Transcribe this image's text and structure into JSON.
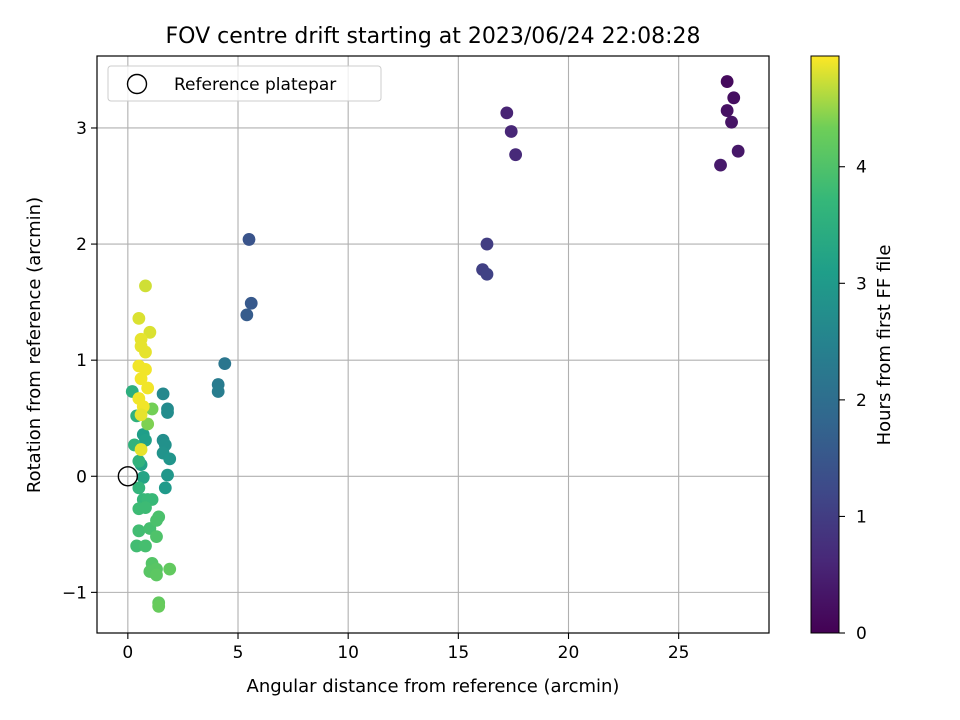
{
  "chart_data": {
    "type": "scatter",
    "title": "FOV centre drift starting at 2023/06/24 22:08:28",
    "xlabel": "Angular distance from reference (arcmin)",
    "ylabel": "Rotation from reference (arcmin)",
    "xlim": [
      -1.4,
      29.1
    ],
    "ylim": [
      -1.35,
      3.62
    ],
    "xticks": [
      0,
      5,
      10,
      15,
      20,
      25
    ],
    "yticks": [
      -1,
      0,
      1,
      2,
      3
    ],
    "x_tick_labels": [
      "0",
      "5",
      "10",
      "15",
      "20",
      "25"
    ],
    "y_tick_labels": [
      "−1",
      "0",
      "1",
      "2",
      "3"
    ],
    "grid": true,
    "legend": {
      "placement": "top-left",
      "entries": [
        "Reference platepar"
      ]
    },
    "colorbar": {
      "label": "Hours from first FF file",
      "colormap": "viridis",
      "range": [
        0,
        4.95
      ],
      "ticks": [
        0,
        1,
        2,
        3,
        4
      ],
      "tick_labels": [
        "0",
        "1",
        "2",
        "3",
        "4"
      ]
    },
    "reference_point": {
      "x": 0,
      "y": 0
    },
    "points": [
      {
        "x": 27.2,
        "y": 3.4,
        "c": 0.15
      },
      {
        "x": 27.5,
        "y": 3.26,
        "c": 0.2
      },
      {
        "x": 27.2,
        "y": 3.15,
        "c": 0.25
      },
      {
        "x": 27.4,
        "y": 3.05,
        "c": 0.3
      },
      {
        "x": 27.7,
        "y": 2.8,
        "c": 0.35
      },
      {
        "x": 26.9,
        "y": 2.68,
        "c": 0.4
      },
      {
        "x": 17.2,
        "y": 3.13,
        "c": 0.55
      },
      {
        "x": 17.4,
        "y": 2.97,
        "c": 0.6
      },
      {
        "x": 17.6,
        "y": 2.77,
        "c": 0.65
      },
      {
        "x": 16.3,
        "y": 2.0,
        "c": 1.0
      },
      {
        "x": 16.1,
        "y": 1.78,
        "c": 1.05
      },
      {
        "x": 16.3,
        "y": 1.74,
        "c": 1.1
      },
      {
        "x": 5.5,
        "y": 2.04,
        "c": 1.45
      },
      {
        "x": 5.6,
        "y": 1.49,
        "c": 1.55
      },
      {
        "x": 5.4,
        "y": 1.39,
        "c": 1.6
      },
      {
        "x": 4.4,
        "y": 0.97,
        "c": 2.2
      },
      {
        "x": 4.1,
        "y": 0.79,
        "c": 2.3
      },
      {
        "x": 4.1,
        "y": 0.73,
        "c": 2.35
      },
      {
        "x": 1.6,
        "y": 0.71,
        "c": 2.6
      },
      {
        "x": 1.8,
        "y": 0.58,
        "c": 2.65
      },
      {
        "x": 1.8,
        "y": 0.55,
        "c": 2.7
      },
      {
        "x": 1.6,
        "y": 0.31,
        "c": 2.75
      },
      {
        "x": 1.7,
        "y": 0.27,
        "c": 2.8
      },
      {
        "x": 1.6,
        "y": 0.2,
        "c": 2.85
      },
      {
        "x": 1.9,
        "y": 0.15,
        "c": 2.9
      },
      {
        "x": 1.8,
        "y": 0.01,
        "c": 2.95
      },
      {
        "x": 1.7,
        "y": -0.1,
        "c": 3.0
      },
      {
        "x": 0.7,
        "y": 0.36,
        "c": 3.1
      },
      {
        "x": 0.8,
        "y": 0.31,
        "c": 3.15
      },
      {
        "x": 0.6,
        "y": 0.1,
        "c": 3.2
      },
      {
        "x": 0.7,
        "y": -0.01,
        "c": 3.25
      },
      {
        "x": 0.2,
        "y": 0.73,
        "c": 3.5
      },
      {
        "x": 0.4,
        "y": 0.52,
        "c": 3.55
      },
      {
        "x": 0.3,
        "y": 0.27,
        "c": 3.6
      },
      {
        "x": 0.5,
        "y": 0.13,
        "c": 3.6
      },
      {
        "x": 0.5,
        "y": -0.1,
        "c": 3.65
      },
      {
        "x": 0.7,
        "y": -0.2,
        "c": 3.7
      },
      {
        "x": 0.9,
        "y": -0.2,
        "c": 3.75
      },
      {
        "x": 1.1,
        "y": -0.2,
        "c": 3.75
      },
      {
        "x": 0.5,
        "y": -0.28,
        "c": 3.8
      },
      {
        "x": 0.8,
        "y": -0.27,
        "c": 3.8
      },
      {
        "x": 0.5,
        "y": -0.47,
        "c": 3.85
      },
      {
        "x": 0.4,
        "y": -0.6,
        "c": 3.85
      },
      {
        "x": 0.8,
        "y": -0.6,
        "c": 3.9
      },
      {
        "x": 1.0,
        "y": -0.45,
        "c": 3.9
      },
      {
        "x": 1.3,
        "y": -0.38,
        "c": 3.95
      },
      {
        "x": 1.4,
        "y": -0.35,
        "c": 3.95
      },
      {
        "x": 1.3,
        "y": -0.52,
        "c": 4.0
      },
      {
        "x": 1.1,
        "y": -0.75,
        "c": 4.05
      },
      {
        "x": 1.3,
        "y": -0.8,
        "c": 4.1
      },
      {
        "x": 1.0,
        "y": -0.82,
        "c": 4.1
      },
      {
        "x": 1.3,
        "y": -0.85,
        "c": 4.15
      },
      {
        "x": 1.9,
        "y": -0.8,
        "c": 4.2
      },
      {
        "x": 1.4,
        "y": -1.09,
        "c": 4.2
      },
      {
        "x": 1.4,
        "y": -1.12,
        "c": 4.25
      },
      {
        "x": 1.1,
        "y": 0.58,
        "c": 4.35
      },
      {
        "x": 0.9,
        "y": 0.45,
        "c": 4.4
      },
      {
        "x": 0.8,
        "y": 1.64,
        "c": 4.75
      },
      {
        "x": 1.0,
        "y": 1.24,
        "c": 4.8
      },
      {
        "x": 0.5,
        "y": 1.36,
        "c": 4.8
      },
      {
        "x": 0.6,
        "y": 1.18,
        "c": 4.85
      },
      {
        "x": 0.6,
        "y": 1.12,
        "c": 4.85
      },
      {
        "x": 0.8,
        "y": 1.07,
        "c": 4.85
      },
      {
        "x": 0.5,
        "y": 0.95,
        "c": 4.9
      },
      {
        "x": 0.8,
        "y": 0.92,
        "c": 4.9
      },
      {
        "x": 0.6,
        "y": 0.84,
        "c": 4.9
      },
      {
        "x": 0.9,
        "y": 0.76,
        "c": 4.9
      },
      {
        "x": 0.5,
        "y": 0.67,
        "c": 4.9
      },
      {
        "x": 0.7,
        "y": 0.6,
        "c": 4.9
      },
      {
        "x": 0.6,
        "y": 0.53,
        "c": 4.85
      },
      {
        "x": 0.6,
        "y": 0.23,
        "c": 4.85
      }
    ]
  }
}
